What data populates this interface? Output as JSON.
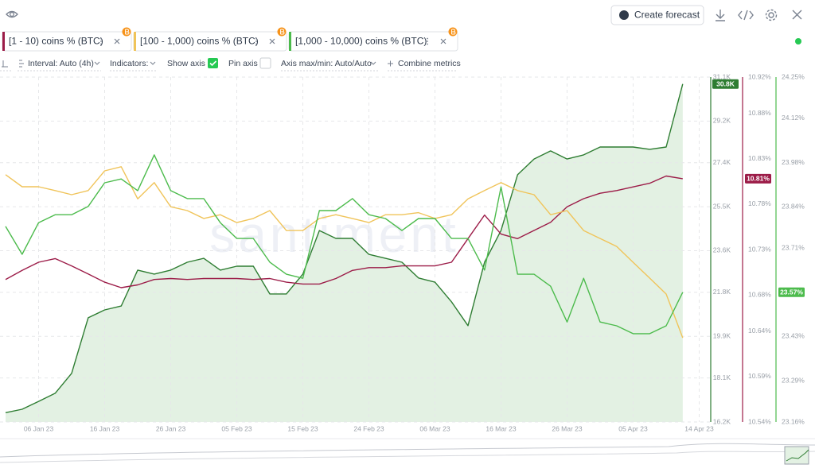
{
  "toolbar": {
    "create_forecast": "Create forecast"
  },
  "controls": {
    "interval": "Interval: Auto (4h)",
    "indicators": "Indicators:",
    "show_axis": "Show axis",
    "pin_axis": "Pin axis",
    "axis_minmax": "Axis max/min: Auto/Auto",
    "combine": "Combine metrics"
  },
  "chart_data": {
    "type": "line",
    "watermark": "santiment",
    "grid": true,
    "categories": [
      null,
      null,
      "06 Jan 23",
      null,
      null,
      null,
      "16 Jan 23",
      null,
      null,
      null,
      "26 Jan 23",
      null,
      null,
      null,
      "05 Feb 23",
      null,
      null,
      null,
      "15 Feb 23",
      null,
      null,
      null,
      "24 Feb 23",
      null,
      null,
      null,
      "06 Mar 23",
      null,
      null,
      null,
      "16 Mar 23",
      null,
      null,
      null,
      "26 Mar 23",
      null,
      null,
      null,
      "05 Apr 23",
      null,
      null,
      null,
      "14 Apr 23"
    ],
    "ylim": [
      16200,
      31100
    ],
    "yticks": [
      {
        "value": 31100,
        "label": "31.1K"
      },
      {
        "value": 29200,
        "label": "29.2K"
      },
      {
        "value": 27400,
        "label": "27.4K"
      },
      {
        "value": 25500,
        "label": "25.5K"
      },
      {
        "value": 23600,
        "label": "23.6K"
      },
      {
        "value": 21800,
        "label": "21.8K"
      },
      {
        "value": 19900,
        "label": "19.9K"
      },
      {
        "value": 18100,
        "label": "18.1K"
      },
      {
        "value": 16200,
        "label": "16.2K"
      }
    ],
    "y2lim": [
      10.54,
      10.92
    ],
    "y2ticks": [
      {
        "value": 10.92,
        "label": "10.92%"
      },
      {
        "value": 10.88,
        "label": "10.88%"
      },
      {
        "value": 10.83,
        "label": "10.83%"
      },
      {
        "value": 10.78,
        "label": "10.78%"
      },
      {
        "value": 10.73,
        "label": "10.73%"
      },
      {
        "value": 10.68,
        "label": "10.68%"
      },
      {
        "value": 10.64,
        "label": "10.64%"
      },
      {
        "value": 10.59,
        "label": "10.59%"
      },
      {
        "value": 10.54,
        "label": "10.54%"
      }
    ],
    "y3lim": [
      23.16,
      24.25
    ],
    "y3ticks": [
      {
        "value": 24.25,
        "label": "24.25%"
      },
      {
        "value": 24.12,
        "label": "24.12%"
      },
      {
        "value": 23.98,
        "label": "23.98%"
      },
      {
        "value": 23.84,
        "label": "23.84%"
      },
      {
        "value": 23.71,
        "label": "23.71%"
      },
      {
        "value": 23.57,
        "label": "23.57%"
      },
      {
        "value": 23.43,
        "label": "23.43%"
      },
      {
        "value": 23.29,
        "label": "23.29%"
      },
      {
        "value": 23.16,
        "label": "23.16%"
      }
    ],
    "y4lim": [
      0,
      100
    ],
    "series": [
      {
        "color": "#2e7d32",
        "fill": "#e3f1e3",
        "axis": "y",
        "values": [
          16600,
          16750,
          17090,
          17440,
          18300,
          20700,
          21040,
          21210,
          22760,
          22590,
          22760,
          23100,
          23270,
          22760,
          22930,
          22930,
          21730,
          21730,
          22590,
          24470,
          24130,
          24130,
          23440,
          23270,
          23100,
          22420,
          22240,
          21390,
          20360,
          23100,
          24470,
          26880,
          27560,
          27910,
          27560,
          27740,
          28080,
          28080,
          28080,
          27980,
          28080,
          30800,
          null
        ],
        "value_labels": [
          null,
          null,
          null,
          null,
          null,
          null,
          null,
          null,
          null,
          null,
          null,
          null,
          null,
          null,
          null,
          null,
          null,
          null,
          null,
          null,
          null,
          null,
          null,
          null,
          null,
          null,
          null,
          null,
          null,
          null,
          null,
          null,
          null,
          null,
          null,
          null,
          null,
          null,
          null,
          null,
          null,
          "30.8K",
          null
        ]
      },
      {
        "name": "[1 - 10) coins % (BTC)",
        "color": "#9c1c48",
        "axis": "y2",
        "values": [
          10.697,
          10.707,
          10.716,
          10.72,
          10.712,
          10.703,
          10.694,
          10.688,
          10.691,
          10.697,
          10.698,
          10.697,
          10.698,
          10.698,
          10.698,
          10.697,
          10.698,
          10.694,
          10.692,
          10.692,
          10.698,
          10.707,
          10.71,
          10.71,
          10.712,
          10.712,
          10.712,
          10.716,
          10.742,
          10.768,
          10.747,
          10.742,
          10.751,
          10.76,
          10.777,
          10.786,
          10.792,
          10.795,
          10.799,
          10.803,
          10.811,
          10.808,
          null
        ],
        "value_labels": [
          null,
          null,
          null,
          null,
          null,
          null,
          null,
          null,
          null,
          null,
          null,
          null,
          null,
          null,
          null,
          null,
          null,
          null,
          null,
          null,
          null,
          null,
          null,
          null,
          null,
          null,
          null,
          null,
          null,
          null,
          null,
          null,
          null,
          null,
          null,
          null,
          null,
          null,
          null,
          null,
          null,
          "10.81%",
          null
        ]
      },
      {
        "name": "[100 - 1,000) coins % (BTC)",
        "color": "#f0c45a",
        "axis": "y4",
        "values": [
          71.7,
          68.2,
          68.2,
          67.1,
          65.9,
          67.1,
          72.8,
          74.0,
          64.7,
          69.4,
          62.4,
          61.3,
          59.0,
          60.1,
          57.8,
          59.0,
          61.3,
          55.5,
          55.5,
          59.0,
          60.1,
          59.0,
          57.8,
          60.1,
          60.1,
          60.7,
          59.0,
          60.1,
          64.7,
          67.1,
          69.4,
          67.1,
          65.9,
          60.1,
          61.3,
          55.5,
          53.2,
          50.9,
          46.3,
          41.7,
          37.1,
          24.4,
          null
        ]
      },
      {
        "name": "[1,000 - 10,000) coins % (BTC)",
        "color": "#4cbb4c",
        "axis": "y3",
        "values": [
          23.778,
          23.69,
          23.79,
          23.815,
          23.815,
          23.841,
          23.916,
          23.928,
          23.891,
          24.004,
          23.891,
          23.866,
          23.866,
          23.79,
          23.74,
          23.74,
          23.665,
          23.627,
          23.614,
          23.828,
          23.828,
          23.866,
          23.815,
          23.803,
          23.765,
          23.803,
          23.803,
          23.74,
          23.74,
          23.64,
          23.903,
          23.627,
          23.627,
          23.589,
          23.476,
          23.614,
          23.476,
          23.464,
          23.439,
          23.439,
          23.464,
          23.57,
          null
        ],
        "value_labels": [
          null,
          null,
          null,
          null,
          null,
          null,
          null,
          null,
          null,
          null,
          null,
          null,
          null,
          null,
          null,
          null,
          null,
          null,
          null,
          null,
          null,
          null,
          null,
          null,
          null,
          null,
          null,
          null,
          null,
          null,
          null,
          null,
          null,
          null,
          null,
          null,
          null,
          null,
          null,
          null,
          null,
          "23.57%",
          null
        ]
      }
    ]
  }
}
